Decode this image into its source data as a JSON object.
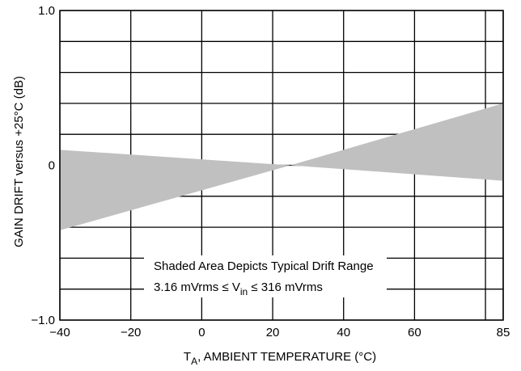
{
  "chart_data": {
    "type": "area",
    "xlabel_main": "T",
    "xlabel_sub": "A",
    "xlabel_rest": ", AMBIENT TEMPERATURE (°C)",
    "ylabel": "GAIN DRIFT versus +25°C (dB)",
    "xlim": [
      -40,
      85
    ],
    "ylim": [
      -1.0,
      1.0
    ],
    "x_ticks": [
      -40,
      -20,
      0,
      20,
      40,
      60,
      85
    ],
    "x_tick_labels": [
      "−40",
      "−20",
      "0",
      "20",
      "40",
      "60",
      "85"
    ],
    "y_tick_labels": [
      {
        "value": 1.0,
        "label": "1.0"
      },
      {
        "value": 0,
        "label": "0"
      },
      {
        "value": -1.0,
        "label": "−1.0"
      }
    ],
    "grid": true,
    "x_gridlines": [
      -40,
      -20,
      0,
      20,
      40,
      60,
      80,
      85
    ],
    "y_gridlines": [
      1.0,
      0.8,
      0.6,
      0.4,
      0.2,
      0,
      -0.2,
      -0.4,
      -0.6,
      -0.8,
      -1.0
    ],
    "series": [
      {
        "x": [
          -40,
          25,
          85
        ],
        "upper": [
          0.1,
          0.0,
          0.4
        ],
        "lower": [
          -0.42,
          0.0,
          -0.1
        ]
      }
    ],
    "colors": {
      "shade": "#c0c0c0",
      "grid": "#000000"
    },
    "annotation": {
      "line1": "Shaded Area Depicts Typical Drift Range",
      "line2_a": "3.16 mVrms ≤ V",
      "line2_sub": "in",
      "line2_b": " ≤ 316 mVrms"
    }
  }
}
